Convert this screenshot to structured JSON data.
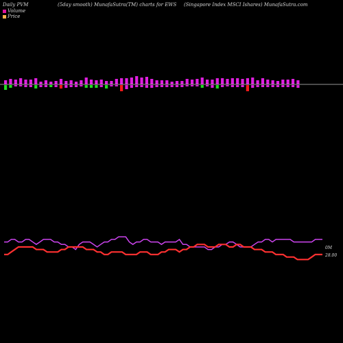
{
  "header": {
    "left": "Daily PVM",
    "middle": "(5day smooth) MunafaSutra(TM) charts for EWS",
    "right": "(Singapore   Index MSCI Ishares) MunafaSutra.com"
  },
  "legend": {
    "volume_label": "Volume",
    "price_label": "Price",
    "volume_color": "#e0119e",
    "price_color": "#ffb14a"
  },
  "chart_data": {
    "type": "bar",
    "bars": {
      "up_color": "#e020e0",
      "down_color": "#ff1a1a",
      "green_color": "#22dd22",
      "items": [
        {
          "up": 6,
          "down": 7,
          "color": "green"
        },
        {
          "up": 8,
          "down": 4,
          "color": "green"
        },
        {
          "up": 7,
          "down": 2,
          "color": "magenta"
        },
        {
          "up": 9,
          "down": 2,
          "color": "magenta"
        },
        {
          "up": 7,
          "down": 3,
          "color": "magenta"
        },
        {
          "up": 7,
          "down": 3,
          "color": "magenta"
        },
        {
          "up": 9,
          "down": 5,
          "color": "green"
        },
        {
          "up": 4,
          "down": 3,
          "color": "magenta"
        },
        {
          "up": 6,
          "down": 3,
          "color": "magenta"
        },
        {
          "up": 4,
          "down": 3,
          "color": "green"
        },
        {
          "up": 5,
          "down": 3,
          "color": "magenta"
        },
        {
          "up": 8,
          "down": 5,
          "color": "red"
        },
        {
          "up": 5,
          "down": 4,
          "color": "magenta"
        },
        {
          "up": 6,
          "down": 3,
          "color": "magenta"
        },
        {
          "up": 4,
          "down": 3,
          "color": "magenta"
        },
        {
          "up": 6,
          "down": 2,
          "color": "magenta"
        },
        {
          "up": 10,
          "down": 4,
          "color": "green"
        },
        {
          "up": 7,
          "down": 4,
          "color": "green"
        },
        {
          "up": 6,
          "down": 4,
          "color": "green"
        },
        {
          "up": 7,
          "down": 3,
          "color": "magenta"
        },
        {
          "up": 5,
          "down": 5,
          "color": "green"
        },
        {
          "up": 5,
          "down": 2,
          "color": "magenta"
        },
        {
          "up": 8,
          "down": 2,
          "color": "magenta"
        },
        {
          "up": 9,
          "down": 9,
          "color": "red"
        },
        {
          "up": 9,
          "down": 6,
          "color": "magenta"
        },
        {
          "up": 10,
          "down": 4,
          "color": "magenta"
        },
        {
          "up": 12,
          "down": 3,
          "color": "magenta"
        },
        {
          "up": 10,
          "down": 3,
          "color": "magenta"
        },
        {
          "up": 11,
          "down": 4,
          "color": "magenta"
        },
        {
          "up": 8,
          "down": 4,
          "color": "magenta"
        },
        {
          "up": 6,
          "down": 3,
          "color": "magenta"
        },
        {
          "up": 6,
          "down": 3,
          "color": "magenta"
        },
        {
          "up": 6,
          "down": 3,
          "color": "magenta"
        },
        {
          "up": 4,
          "down": 3,
          "color": "magenta"
        },
        {
          "up": 5,
          "down": 3,
          "color": "magenta"
        },
        {
          "up": 5,
          "down": 3,
          "color": "magenta"
        },
        {
          "up": 8,
          "down": 2,
          "color": "magenta"
        },
        {
          "up": 7,
          "down": 2,
          "color": "magenta"
        },
        {
          "up": 8,
          "down": 2,
          "color": "magenta"
        },
        {
          "up": 10,
          "down": 4,
          "color": "green"
        },
        {
          "up": 7,
          "down": 2,
          "color": "magenta"
        },
        {
          "up": 7,
          "down": 4,
          "color": "magenta"
        },
        {
          "up": 9,
          "down": 5,
          "color": "green"
        },
        {
          "up": 9,
          "down": 3,
          "color": "magenta"
        },
        {
          "up": 8,
          "down": 2,
          "color": "magenta"
        },
        {
          "up": 9,
          "down": 3,
          "color": "magenta"
        },
        {
          "up": 9,
          "down": 3,
          "color": "magenta"
        },
        {
          "up": 8,
          "down": 3,
          "color": "magenta"
        },
        {
          "up": 9,
          "down": 9,
          "color": "red"
        },
        {
          "up": 10,
          "down": 4,
          "color": "magenta"
        },
        {
          "up": 6,
          "down": 3,
          "color": "magenta"
        },
        {
          "up": 9,
          "down": 3,
          "color": "magenta"
        },
        {
          "up": 7,
          "down": 3,
          "color": "magenta"
        },
        {
          "up": 6,
          "down": 3,
          "color": "magenta"
        },
        {
          "up": 5,
          "down": 3,
          "color": "magenta"
        },
        {
          "up": 7,
          "down": 3,
          "color": "magenta"
        },
        {
          "up": 7,
          "down": 3,
          "color": "magenta"
        },
        {
          "up": 8,
          "down": 3,
          "color": "magenta"
        },
        {
          "up": 6,
          "down": 4,
          "color": "magenta"
        }
      ]
    },
    "lines": {
      "series": [
        {
          "name": "Volume",
          "color": "#cc44ee",
          "values": [
            8,
            8,
            9,
            9,
            8,
            8,
            9,
            9,
            8,
            7,
            8,
            9,
            9,
            9,
            8,
            8,
            7,
            7,
            6,
            6,
            5,
            7,
            8,
            8,
            8,
            7,
            6,
            7,
            8,
            8,
            9,
            9,
            10,
            10,
            10,
            8,
            7,
            8,
            8,
            9,
            9,
            8,
            8,
            8,
            7,
            8,
            8,
            8,
            8,
            9,
            7,
            7,
            6,
            6,
            6,
            6,
            6,
            5,
            5,
            6,
            6,
            7,
            7,
            8,
            8,
            7,
            6,
            6,
            6,
            6,
            7,
            8,
            8,
            9,
            9,
            8,
            9,
            9,
            9,
            9,
            9,
            8,
            8,
            8,
            8,
            8,
            8,
            9,
            9,
            9
          ]
        },
        {
          "name": "Price",
          "color": "#ff3030",
          "values": [
            3,
            3,
            4,
            5,
            6,
            6,
            6,
            6,
            6,
            5,
            5,
            5,
            4,
            4,
            4,
            4,
            5,
            5,
            6,
            6,
            6,
            6,
            6,
            5,
            5,
            5,
            4,
            4,
            3,
            3,
            4,
            4,
            4,
            4,
            3,
            3,
            3,
            3,
            4,
            4,
            4,
            3,
            3,
            3,
            4,
            4,
            5,
            5,
            5,
            4,
            5,
            5,
            6,
            6,
            7,
            7,
            7,
            6,
            6,
            6,
            7,
            7,
            7,
            6,
            6,
            7,
            7,
            6,
            6,
            6,
            5,
            5,
            5,
            4,
            4,
            4,
            3,
            3,
            3,
            2,
            2,
            2,
            1,
            1,
            1,
            1,
            2,
            3,
            3,
            3
          ]
        }
      ],
      "end_labels": [
        "0M",
        "28.00"
      ]
    }
  }
}
